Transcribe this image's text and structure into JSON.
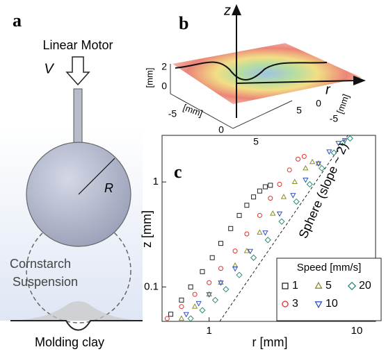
{
  "panel_a": {
    "label": "a",
    "motor_label": "Linear Motor",
    "velocity_label": "V",
    "radius_label": "R",
    "suspension_label": [
      "Cornstarch",
      "Suspension"
    ],
    "clay_label": "Molding clay"
  },
  "panel_b": {
    "label": "b",
    "z_axis_label": "z",
    "r_axis_label": "r",
    "height_unit": "[mm]",
    "left_unit": "[mm]",
    "right_unit": "[mm]",
    "height_ticks": [
      2,
      0
    ],
    "left_ticks": [
      -5,
      0,
      5
    ],
    "right_ticks": [
      5,
      0,
      -5
    ]
  },
  "chart_data": {
    "type": "scatter",
    "label": "c",
    "x_label": "r [mm]",
    "y_label": "z [mm]",
    "log_x": true,
    "log_y": true,
    "xlim": [
      0.48,
      13.4
    ],
    "ylim": [
      0.047,
      2.78
    ],
    "xticks": [
      1,
      10
    ],
    "yticks": [
      0.1,
      1
    ],
    "legend": "lower right",
    "legend_title": "Speed [mm/s]",
    "series": [
      {
        "name": "1",
        "color": "#222222",
        "marker": "square",
        "x": [
          0.55,
          0.65,
          0.75,
          0.9,
          1.05,
          1.2,
          1.4,
          1.6,
          1.8,
          2.0,
          2.2,
          2.4,
          2.6
        ],
        "values": [
          0.055,
          0.075,
          0.1,
          0.14,
          0.19,
          0.26,
          0.36,
          0.48,
          0.6,
          0.72,
          0.82,
          0.9,
          0.93
        ]
      },
      {
        "name": "3",
        "color": "#e0302a",
        "marker": "circle",
        "x": [
          0.52,
          0.65,
          0.8,
          1.0,
          1.2,
          1.5,
          1.8,
          2.2,
          2.6,
          3.0,
          3.5,
          4.0,
          4.4
        ],
        "values": [
          0.05,
          0.065,
          0.085,
          0.11,
          0.15,
          0.22,
          0.32,
          0.48,
          0.7,
          0.95,
          1.3,
          1.65,
          1.75
        ]
      },
      {
        "name": "5",
        "color": "#8a8a2a",
        "marker": "triangle-up",
        "x": [
          0.65,
          0.8,
          1.0,
          1.2,
          1.5,
          1.8,
          2.2,
          2.7,
          3.2,
          3.8,
          4.5,
          5.0,
          5.5
        ],
        "values": [
          0.05,
          0.065,
          0.085,
          0.11,
          0.16,
          0.22,
          0.33,
          0.5,
          0.72,
          1.0,
          1.35,
          1.55,
          1.5
        ]
      },
      {
        "name": "10",
        "color": "#3050c0",
        "marker": "triangle-down",
        "x": [
          0.7,
          0.85,
          1.0,
          1.2,
          1.5,
          1.9,
          2.4,
          3.0,
          3.7,
          4.5,
          5.5,
          6.5,
          7.5,
          8.3
        ],
        "values": [
          0.055,
          0.07,
          0.085,
          0.11,
          0.15,
          0.22,
          0.33,
          0.5,
          0.75,
          1.05,
          1.5,
          1.95,
          2.35,
          2.5
        ]
      },
      {
        "name": "20",
        "color": "#2a8a7a",
        "marker": "diamond",
        "x": [
          0.75,
          0.9,
          1.1,
          1.3,
          1.6,
          2.0,
          2.5,
          3.1,
          3.9,
          4.8,
          5.8,
          7.0,
          8.0,
          9.0
        ],
        "values": [
          0.05,
          0.06,
          0.075,
          0.095,
          0.13,
          0.19,
          0.28,
          0.42,
          0.65,
          0.95,
          1.35,
          1.9,
          2.35,
          2.6
        ]
      }
    ],
    "reference_line": {
      "label": "Sphere (slope ~ 2)",
      "x": [
        1.18,
        8.7
      ],
      "values": [
        0.047,
        2.78
      ]
    }
  }
}
